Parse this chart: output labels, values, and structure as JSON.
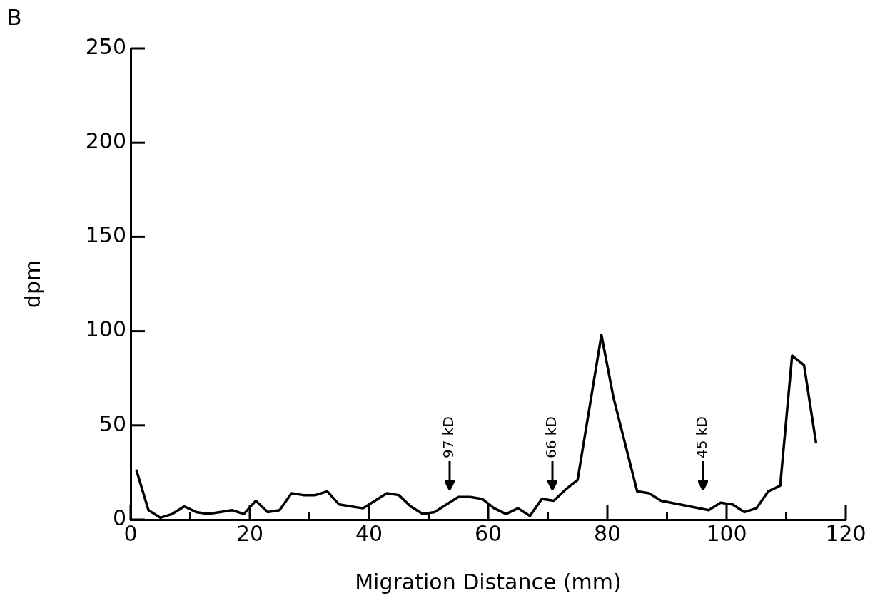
{
  "chart_data": {
    "type": "line",
    "xlabel": "Migration Distance (mm)",
    "ylabel": "dpm",
    "x": [
      1,
      3,
      5,
      7,
      9,
      11,
      13,
      15,
      17,
      19,
      21,
      23,
      25,
      27,
      29,
      31,
      33,
      35,
      37,
      39,
      41,
      43,
      45,
      47,
      49,
      51,
      53,
      55,
      57,
      59,
      61,
      63,
      65,
      67,
      69,
      71,
      73,
      75,
      79,
      81,
      85,
      87,
      89,
      97,
      99,
      101,
      103,
      105,
      107,
      109,
      111,
      113,
      115
    ],
    "series": [
      {
        "color": "#000000",
        "values": [
          26,
          5,
          1,
          3,
          7,
          4,
          3,
          4,
          5,
          3,
          10,
          4,
          5,
          14,
          13,
          13,
          15,
          8,
          7,
          6,
          10,
          14,
          13,
          7,
          3,
          4,
          8,
          12,
          12,
          11,
          6,
          3,
          6,
          2,
          11,
          10,
          16,
          21,
          98,
          65,
          15,
          14,
          10,
          5,
          9,
          8,
          4,
          6,
          15,
          18,
          87,
          82,
          41
        ]
      }
    ],
    "xlim": [
      0,
      120
    ],
    "xticks": [
      0,
      {
        "value": 10,
        "label": null
      },
      20,
      {
        "value": 30,
        "label": null
      },
      40,
      {
        "value": 50,
        "label": null
      },
      60,
      {
        "value": 70,
        "label": null
      },
      80,
      {
        "value": 90,
        "label": null
      },
      100,
      {
        "value": 110,
        "label": null
      },
      120
    ],
    "ylim": [
      0,
      250
    ],
    "yticks": [
      0,
      50,
      100,
      150,
      200,
      250
    ],
    "grid": false,
    "legend": false,
    "marker": "none",
    "line_style": "solid",
    "annotations": [
      "B"
    ],
    "ref_lines": [
      {
        "axis": "x",
        "value": 53.5,
        "label": "97 kD"
      },
      {
        "axis": "x",
        "value": 70.8,
        "label": "66 kD"
      },
      {
        "axis": "x",
        "value": 96,
        "label": "45 kD"
      }
    ]
  }
}
